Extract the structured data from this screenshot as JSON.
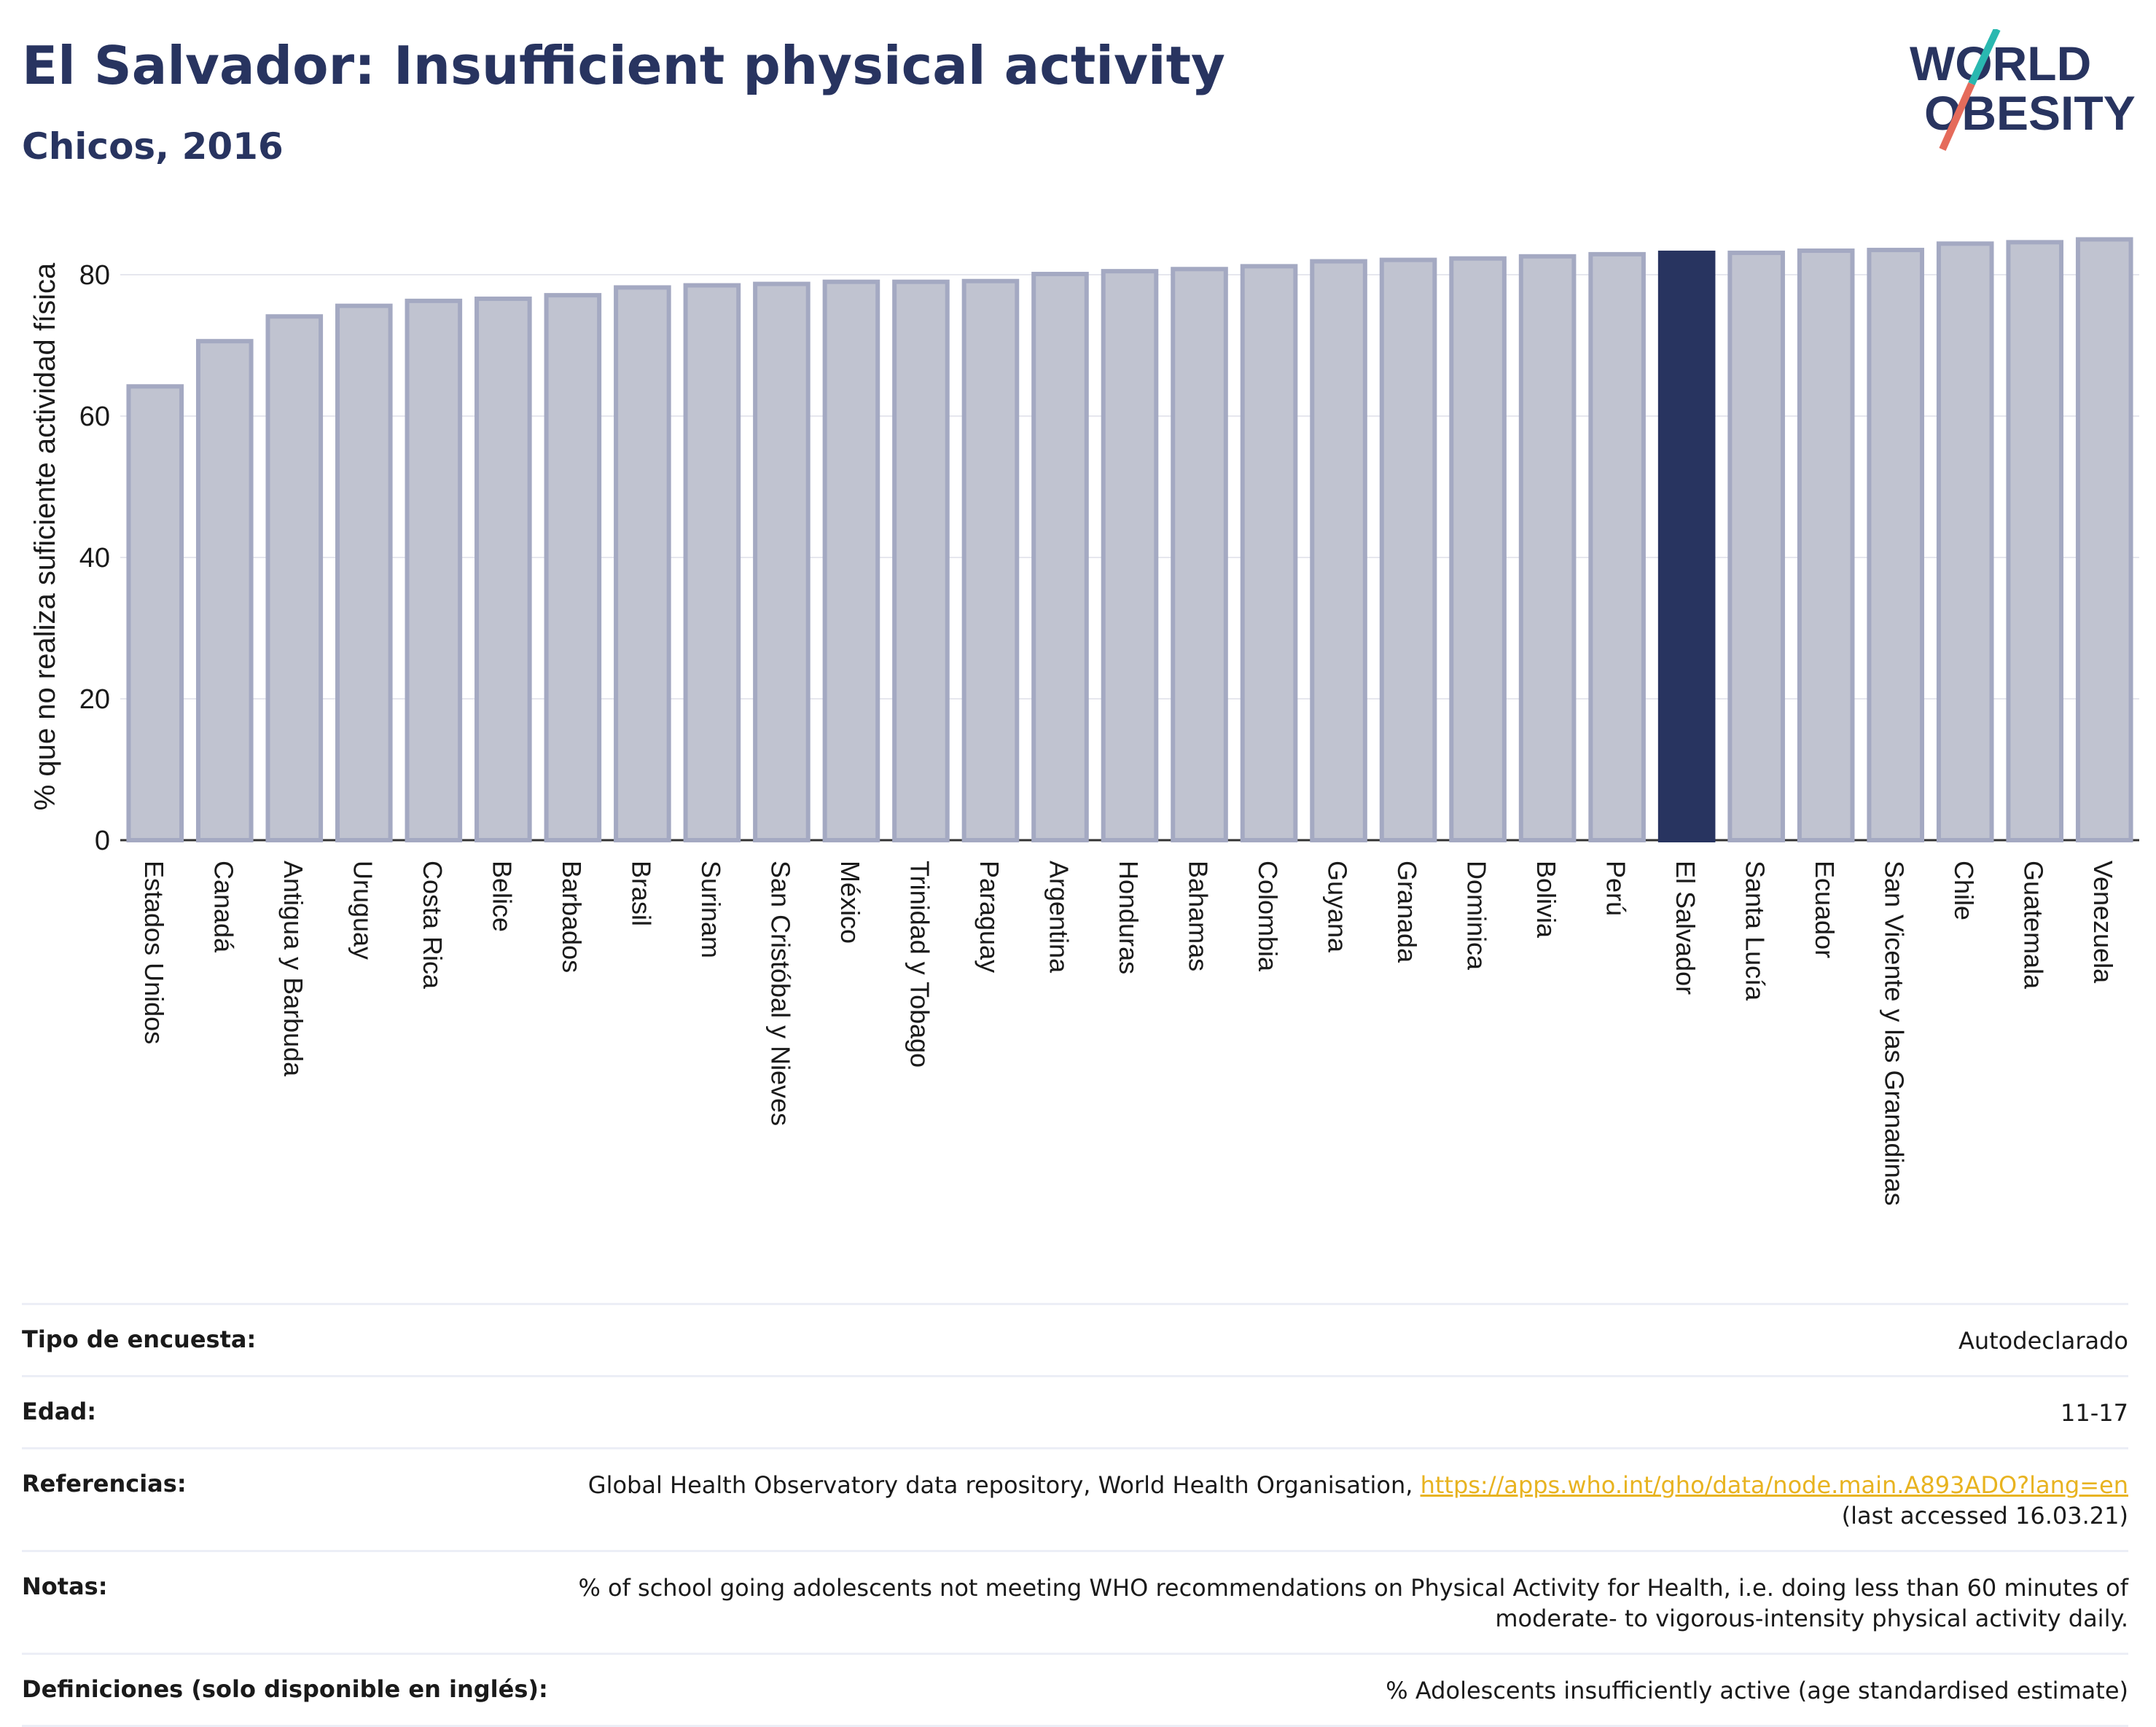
{
  "header": {
    "title": "El Salvador: Insufficient physical activity",
    "subtitle": "Chicos, 2016"
  },
  "logo": {
    "line1": "WORLD",
    "line2": "OBESITY"
  },
  "colors": {
    "highlight": "#283460",
    "bar": "#c0c3d0",
    "bar_edge": "#a4a9c2",
    "accent_teal": "#2ab8b0",
    "accent_red": "#e56b5b",
    "link": "#e8b320"
  },
  "chart_data": {
    "type": "bar",
    "ylabel": "% que no realiza suficiente actividad física",
    "xlabel": "",
    "ylim": [
      0,
      90
    ],
    "yticks": [
      0,
      20,
      40,
      60,
      80
    ],
    "grid": true,
    "highlight": "El Salvador",
    "categories": [
      "Estados Unidos",
      "Canadá",
      "Antigua y Barbuda",
      "Uruguay",
      "Costa Rica",
      "Belice",
      "Barbados",
      "Brasil",
      "Surinam",
      "San Cristóbal y Nieves",
      "México",
      "Trinidad y Tobago",
      "Paraguay",
      "Argentina",
      "Honduras",
      "Bahamas",
      "Colombia",
      "Guyana",
      "Granada",
      "Dominica",
      "Bolivia",
      "Perú",
      "El Salvador",
      "Santa Lucía",
      "Ecuador",
      "San Vicente y las Granadinas",
      "Chile",
      "Guatemala",
      "Venezuela"
    ],
    "values": [
      64.2,
      70.6,
      74.1,
      75.6,
      76.3,
      76.6,
      77.1,
      78.2,
      78.5,
      78.7,
      79.0,
      79.0,
      79.1,
      80.1,
      80.5,
      80.8,
      81.2,
      81.9,
      82.1,
      82.3,
      82.6,
      82.9,
      83.1,
      83.1,
      83.4,
      83.5,
      84.4,
      84.6,
      85.0
    ]
  },
  "info": [
    {
      "key": "Tipo de encuesta:",
      "value": "Autodeclarado"
    },
    {
      "key": "Edad:",
      "value": "11-17"
    },
    {
      "key": "Referencias:",
      "value": "Global Health Observatory data repository, World Health Organisation, ",
      "link": "https://apps.who.int/gho/data/node.main.A893ADO?lang=en",
      "value2": "(last accessed 16.03.21)"
    },
    {
      "key": "Notas:",
      "value": "% of school going adolescents not meeting WHO recommendations on Physical Activity for Health, i.e. doing less than 60 minutes of moderate- to vigorous-intensity physical activity daily."
    },
    {
      "key": "Definiciones (solo disponible en inglés):",
      "value": "% Adolescents insufficiently active (age standardised estimate)"
    }
  ]
}
